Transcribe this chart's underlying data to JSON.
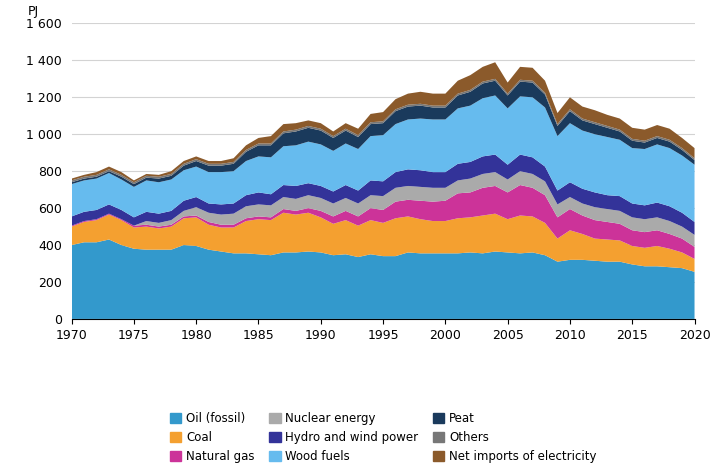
{
  "years": [
    1970,
    1971,
    1972,
    1973,
    1974,
    1975,
    1976,
    1977,
    1978,
    1979,
    1980,
    1981,
    1982,
    1983,
    1984,
    1985,
    1986,
    1987,
    1988,
    1989,
    1990,
    1991,
    1992,
    1993,
    1994,
    1995,
    1996,
    1997,
    1998,
    1999,
    2000,
    2001,
    2002,
    2003,
    2004,
    2005,
    2006,
    2007,
    2008,
    2009,
    2010,
    2011,
    2012,
    2013,
    2014,
    2015,
    2016,
    2017,
    2018,
    2019,
    2020
  ],
  "oil_fossil": [
    400,
    415,
    415,
    430,
    400,
    380,
    375,
    375,
    375,
    400,
    395,
    375,
    365,
    355,
    355,
    350,
    345,
    360,
    360,
    365,
    360,
    345,
    350,
    335,
    350,
    340,
    340,
    360,
    355,
    355,
    355,
    355,
    360,
    355,
    365,
    360,
    355,
    360,
    345,
    310,
    320,
    320,
    315,
    310,
    310,
    295,
    285,
    285,
    280,
    275,
    255
  ],
  "coal": [
    100,
    110,
    120,
    135,
    135,
    115,
    125,
    115,
    125,
    145,
    155,
    135,
    130,
    140,
    175,
    190,
    190,
    215,
    205,
    210,
    190,
    170,
    185,
    170,
    185,
    180,
    205,
    195,
    185,
    175,
    175,
    190,
    190,
    205,
    205,
    180,
    205,
    195,
    175,
    125,
    160,
    140,
    120,
    120,
    115,
    100,
    100,
    110,
    100,
    85,
    70
  ],
  "natural_gas": [
    5,
    5,
    5,
    5,
    5,
    10,
    10,
    10,
    10,
    10,
    10,
    15,
    15,
    15,
    15,
    15,
    15,
    20,
    20,
    25,
    35,
    40,
    50,
    50,
    65,
    70,
    90,
    90,
    100,
    105,
    110,
    135,
    135,
    150,
    150,
    145,
    165,
    155,
    150,
    115,
    115,
    100,
    100,
    95,
    90,
    85,
    85,
    85,
    80,
    75,
    65
  ],
  "nuclear_energy": [
    0,
    0,
    0,
    0,
    0,
    0,
    20,
    20,
    25,
    30,
    45,
    50,
    55,
    60,
    65,
    65,
    65,
    65,
    65,
    70,
    70,
    70,
    70,
    70,
    70,
    75,
    75,
    75,
    75,
    75,
    70,
    70,
    75,
    75,
    75,
    70,
    75,
    75,
    75,
    70,
    65,
    65,
    70,
    70,
    70,
    70,
    70,
    70,
    70,
    65,
    65
  ],
  "hydro_wind": [
    50,
    50,
    50,
    50,
    50,
    45,
    50,
    50,
    50,
    55,
    55,
    50,
    55,
    55,
    60,
    65,
    60,
    65,
    70,
    65,
    65,
    65,
    70,
    70,
    80,
    80,
    85,
    90,
    90,
    85,
    85,
    90,
    90,
    95,
    95,
    80,
    90,
    90,
    80,
    75,
    80,
    80,
    80,
    75,
    80,
    75,
    75,
    80,
    80,
    75,
    70
  ],
  "wood_fuels": [
    175,
    170,
    170,
    170,
    165,
    165,
    170,
    170,
    170,
    165,
    165,
    170,
    175,
    175,
    185,
    195,
    200,
    210,
    220,
    225,
    225,
    220,
    225,
    225,
    240,
    250,
    260,
    270,
    280,
    285,
    285,
    300,
    305,
    315,
    320,
    305,
    315,
    325,
    320,
    295,
    320,
    315,
    315,
    315,
    305,
    300,
    305,
    315,
    315,
    310,
    310
  ],
  "peat": [
    10,
    10,
    10,
    10,
    15,
    15,
    15,
    20,
    20,
    25,
    30,
    35,
    35,
    40,
    50,
    60,
    65,
    70,
    75,
    75,
    75,
    70,
    70,
    65,
    65,
    65,
    70,
    70,
    70,
    65,
    65,
    70,
    75,
    80,
    80,
    70,
    80,
    80,
    70,
    55,
    65,
    55,
    55,
    50,
    45,
    40,
    35,
    35,
    35,
    30,
    25
  ],
  "others": [
    10,
    10,
    10,
    10,
    10,
    10,
    10,
    10,
    10,
    10,
    10,
    10,
    10,
    10,
    10,
    10,
    10,
    10,
    10,
    10,
    10,
    10,
    10,
    10,
    10,
    10,
    10,
    10,
    10,
    10,
    10,
    10,
    10,
    10,
    10,
    10,
    10,
    10,
    10,
    10,
    10,
    10,
    10,
    10,
    10,
    10,
    10,
    10,
    10,
    10,
    10
  ],
  "net_imports_elec": [
    10,
    10,
    15,
    15,
    15,
    10,
    10,
    10,
    15,
    15,
    15,
    15,
    15,
    20,
    25,
    30,
    40,
    40,
    35,
    30,
    30,
    25,
    30,
    35,
    45,
    50,
    55,
    60,
    65,
    65,
    65,
    70,
    80,
    80,
    90,
    60,
    70,
    70,
    65,
    60,
    65,
    65,
    65,
    60,
    60,
    60,
    60,
    60,
    60,
    55,
    55
  ],
  "colors": {
    "oil_fossil": "#3399CC",
    "coal": "#F4A030",
    "natural_gas": "#CC3399",
    "nuclear_energy": "#AAAAAA",
    "hydro_wind": "#333399",
    "wood_fuels": "#66BBEE",
    "peat": "#1A3A5C",
    "others": "#777777",
    "net_imports_elec": "#8B5A2B"
  },
  "legend_labels": {
    "oil_fossil": "Oil (fossil)",
    "coal": "Coal",
    "natural_gas": "Natural gas",
    "nuclear_energy": "Nuclear energy",
    "hydro_wind": "Hydro and wind power",
    "wood_fuels": "Wood fuels",
    "peat": "Peat",
    "others": "Others",
    "net_imports_elec": "Net imports of electricity"
  },
  "ylabel": "PJ",
  "ylim": [
    0,
    1600
  ],
  "yticks": [
    0,
    200,
    400,
    600,
    800,
    1000,
    1200,
    1400,
    1600
  ],
  "ytick_labels": [
    "0",
    "200",
    "400",
    "600",
    "800",
    "1 000",
    "1 200",
    "1 400",
    "1 600"
  ],
  "xlim": [
    1970,
    2020
  ],
  "xticks": [
    1970,
    1975,
    1980,
    1985,
    1990,
    1995,
    2000,
    2005,
    2010,
    2015,
    2020
  ],
  "stack_order": [
    "oil_fossil",
    "coal",
    "natural_gas",
    "nuclear_energy",
    "hydro_wind",
    "wood_fuels",
    "peat",
    "others",
    "net_imports_elec"
  ],
  "legend_order": [
    "oil_fossil",
    "coal",
    "natural_gas",
    "nuclear_energy",
    "hydro_wind",
    "wood_fuels",
    "peat",
    "others",
    "net_imports_elec"
  ]
}
